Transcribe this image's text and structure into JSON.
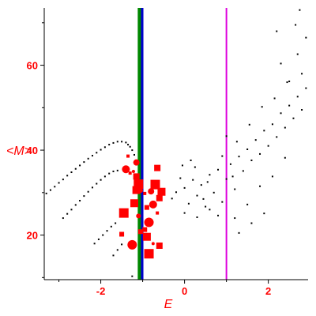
{
  "chart_data": {
    "type": "scatter",
    "xlabel": "E",
    "ylabel": "<M>",
    "xlim": [
      -3.35,
      2.95
    ],
    "ylim": [
      9.5,
      73.5
    ],
    "xticks": [
      -2,
      0,
      2
    ],
    "yticks": [
      20,
      40,
      60
    ],
    "axis_color": "#ff0000",
    "grid": false,
    "vertical_lines": [
      {
        "x": -1.02,
        "color": "#0000cc"
      },
      {
        "x": -1.08,
        "color": "#008800"
      },
      {
        "x": 1.0,
        "color": "#dd00dd"
      }
    ],
    "series": [
      {
        "marker": "small-black-dot",
        "color": "#000000",
        "points": [
          [
            -3.3,
            29.8
          ],
          [
            -3.2,
            30.6
          ],
          [
            -3.1,
            31.4
          ],
          [
            -3.0,
            32.3
          ],
          [
            -2.9,
            33.1
          ],
          [
            -2.8,
            34.0
          ],
          [
            -2.7,
            34.8
          ],
          [
            -2.6,
            35.6
          ],
          [
            -2.5,
            36.4
          ],
          [
            -2.4,
            37.2
          ],
          [
            -2.3,
            38.0
          ],
          [
            -2.2,
            38.7
          ],
          [
            -2.1,
            39.4
          ],
          [
            -2.0,
            40.1
          ],
          [
            -1.9,
            40.7
          ],
          [
            -1.8,
            41.3
          ],
          [
            -1.7,
            41.7
          ],
          [
            -1.6,
            42.0
          ],
          [
            -1.5,
            42.0
          ],
          [
            -1.4,
            41.8
          ],
          [
            -1.35,
            41.3
          ],
          [
            -1.3,
            40.8
          ],
          [
            -1.25,
            40.0
          ],
          [
            -1.2,
            38.9
          ],
          [
            -2.9,
            24.0
          ],
          [
            -2.8,
            25.0
          ],
          [
            -2.7,
            26.0
          ],
          [
            -2.6,
            27.1
          ],
          [
            -2.5,
            28.1
          ],
          [
            -2.4,
            29.2
          ],
          [
            -2.3,
            30.2
          ],
          [
            -2.2,
            31.2
          ],
          [
            -2.1,
            32.1
          ],
          [
            -2.0,
            33.0
          ],
          [
            -1.9,
            33.8
          ],
          [
            -1.8,
            34.5
          ],
          [
            -1.7,
            35.0
          ],
          [
            -1.6,
            35.2
          ],
          [
            -2.15,
            18.0
          ],
          [
            -2.05,
            19.0
          ],
          [
            -1.95,
            20.0
          ],
          [
            -1.85,
            21.0
          ],
          [
            -1.75,
            22.0
          ],
          [
            -1.65,
            22.8
          ],
          [
            -1.7,
            15.2
          ],
          [
            -1.6,
            16.5
          ],
          [
            -1.5,
            17.8
          ],
          [
            -1.25,
            10.3
          ],
          [
            -0.2,
            30.1
          ],
          [
            -0.3,
            28.6
          ],
          [
            0.0,
            31.1
          ],
          [
            0.1,
            27.4
          ],
          [
            0.2,
            33.0
          ],
          [
            0.3,
            29.3
          ],
          [
            0.4,
            31.8
          ],
          [
            0.5,
            26.7
          ],
          [
            0.6,
            34.2
          ],
          [
            0.0,
            25.2
          ],
          [
            -0.1,
            33.4
          ],
          [
            0.25,
            36.0
          ],
          [
            0.45,
            28.5
          ],
          [
            0.55,
            32.5
          ],
          [
            0.7,
            30.0
          ],
          [
            0.8,
            35.4
          ],
          [
            0.9,
            27.8
          ],
          [
            1.0,
            33.2
          ],
          [
            1.1,
            36.7
          ],
          [
            1.2,
            30.8
          ],
          [
            1.3,
            38.5
          ],
          [
            1.0,
            43.3
          ],
          [
            1.4,
            35.1
          ],
          [
            1.5,
            40.2
          ],
          [
            1.6,
            37.6
          ],
          [
            1.7,
            42.4
          ],
          [
            1.8,
            39.1
          ],
          [
            1.9,
            44.6
          ],
          [
            2.0,
            41.0
          ],
          [
            2.1,
            46.1
          ],
          [
            2.2,
            43.1
          ],
          [
            2.3,
            48.7
          ],
          [
            2.4,
            45.3
          ],
          [
            2.5,
            50.5
          ],
          [
            2.6,
            47.5
          ],
          [
            2.7,
            52.6
          ],
          [
            2.8,
            49.5
          ],
          [
            2.9,
            54.6
          ],
          [
            2.5,
            56.2
          ],
          [
            2.8,
            58.0
          ],
          [
            2.3,
            60.4
          ],
          [
            2.7,
            62.6
          ],
          [
            2.2,
            68.0
          ],
          [
            2.65,
            69.5
          ],
          [
            2.75,
            73.0
          ],
          [
            2.9,
            66.5
          ],
          [
            1.3,
            20.5
          ],
          [
            1.6,
            22.8
          ],
          [
            1.9,
            25.1
          ],
          [
            1.2,
            24.0
          ],
          [
            1.5,
            27.2
          ],
          [
            1.8,
            31.5
          ],
          [
            2.1,
            33.8
          ],
          [
            2.4,
            38.2
          ],
          [
            0.3,
            24.2
          ],
          [
            0.6,
            26.0
          ],
          [
            0.8,
            24.6
          ],
          [
            -0.05,
            36.4
          ],
          [
            0.15,
            37.6
          ],
          [
            1.25,
            42.0
          ],
          [
            1.55,
            46.0
          ],
          [
            1.85,
            50.2
          ],
          [
            2.15,
            52.2
          ],
          [
            2.45,
            56.0
          ],
          [
            0.9,
            38.6
          ],
          [
            1.15,
            33.8
          ]
        ]
      },
      {
        "marker": "red-circle-and-square",
        "color": "#ff0000",
        "points": [
          [
            -1.22,
            35.0
          ],
          [
            -1.15,
            33.8
          ],
          [
            -1.1,
            32.0
          ],
          [
            -1.05,
            30.5
          ],
          [
            -1.15,
            30.6
          ],
          [
            -0.95,
            29.8
          ],
          [
            -0.8,
            30.3
          ],
          [
            -0.7,
            31.9
          ],
          [
            -0.9,
            26.5
          ],
          [
            -0.75,
            27.2
          ],
          [
            -0.65,
            25.2
          ],
          [
            -0.6,
            28.7
          ],
          [
            -0.85,
            23.0
          ],
          [
            -0.95,
            21.3
          ],
          [
            -0.9,
            19.6
          ],
          [
            -0.75,
            18.0
          ],
          [
            -0.6,
            17.5
          ],
          [
            -0.85,
            15.6
          ],
          [
            -1.1,
            24.5
          ],
          [
            -1.2,
            27.5
          ],
          [
            -1.3,
            34.6
          ],
          [
            -1.15,
            37.1
          ],
          [
            -1.45,
            25.2
          ],
          [
            -1.5,
            20.2
          ],
          [
            -1.4,
            35.5
          ],
          [
            -1.35,
            38.6
          ],
          [
            -0.65,
            35.8
          ],
          [
            -1.25,
            17.7
          ],
          [
            -1.05,
            20.8
          ],
          [
            -0.55,
            30.2
          ]
        ]
      }
    ]
  }
}
